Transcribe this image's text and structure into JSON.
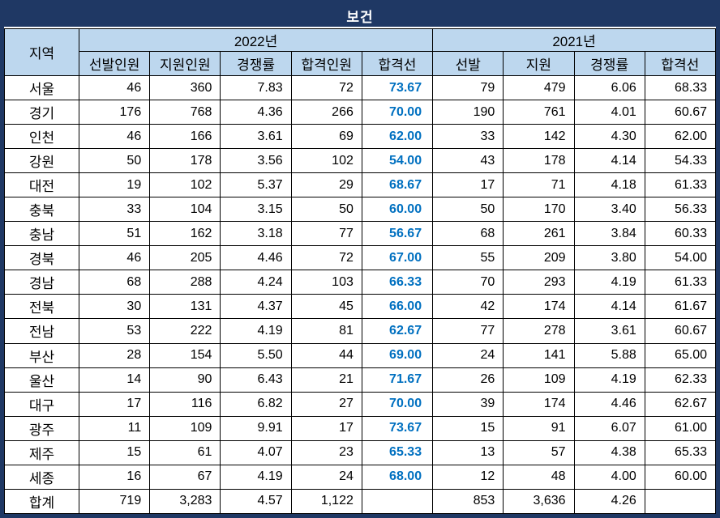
{
  "title": "보건",
  "colors": {
    "navy": "#1F3864",
    "header_fill": "#BDD7EE",
    "passline_text": "#0070C0",
    "grid_line": "#000000"
  },
  "table": {
    "region_header": "지역",
    "groups": [
      {
        "label": "2022년",
        "columns": [
          "선발인원",
          "지원인원",
          "경쟁률",
          "합격인원",
          "합격선"
        ]
      },
      {
        "label": "2021년",
        "columns": [
          "선발",
          "지원",
          "경쟁률",
          "합격선"
        ]
      }
    ],
    "rows": [
      [
        "서울",
        "46",
        "360",
        "7.83",
        "72",
        "73.67",
        "79",
        "479",
        "6.06",
        "68.33"
      ],
      [
        "경기",
        "176",
        "768",
        "4.36",
        "266",
        "70.00",
        "190",
        "761",
        "4.01",
        "60.67"
      ],
      [
        "인천",
        "46",
        "166",
        "3.61",
        "69",
        "62.00",
        "33",
        "142",
        "4.30",
        "62.00"
      ],
      [
        "강원",
        "50",
        "178",
        "3.56",
        "102",
        "54.00",
        "43",
        "178",
        "4.14",
        "54.33"
      ],
      [
        "대전",
        "19",
        "102",
        "5.37",
        "29",
        "68.67",
        "17",
        "71",
        "4.18",
        "61.33"
      ],
      [
        "충북",
        "33",
        "104",
        "3.15",
        "50",
        "60.00",
        "50",
        "170",
        "3.40",
        "56.33"
      ],
      [
        "충남",
        "51",
        "162",
        "3.18",
        "77",
        "56.67",
        "68",
        "261",
        "3.84",
        "60.33"
      ],
      [
        "경북",
        "46",
        "205",
        "4.46",
        "72",
        "67.00",
        "55",
        "209",
        "3.80",
        "54.00"
      ],
      [
        "경남",
        "68",
        "288",
        "4.24",
        "103",
        "66.33",
        "70",
        "293",
        "4.19",
        "61.33"
      ],
      [
        "전북",
        "30",
        "131",
        "4.37",
        "45",
        "66.00",
        "42",
        "174",
        "4.14",
        "61.67"
      ],
      [
        "전남",
        "53",
        "222",
        "4.19",
        "81",
        "62.67",
        "77",
        "278",
        "3.61",
        "60.67"
      ],
      [
        "부산",
        "28",
        "154",
        "5.50",
        "44",
        "69.00",
        "24",
        "141",
        "5.88",
        "65.00"
      ],
      [
        "울산",
        "14",
        "90",
        "6.43",
        "21",
        "71.67",
        "26",
        "109",
        "4.19",
        "62.33"
      ],
      [
        "대구",
        "17",
        "116",
        "6.82",
        "27",
        "70.00",
        "39",
        "174",
        "4.46",
        "62.67"
      ],
      [
        "광주",
        "11",
        "109",
        "9.91",
        "17",
        "73.67",
        "15",
        "91",
        "6.07",
        "61.00"
      ],
      [
        "제주",
        "15",
        "61",
        "4.07",
        "23",
        "65.33",
        "13",
        "57",
        "4.38",
        "65.33"
      ],
      [
        "세종",
        "16",
        "67",
        "4.19",
        "24",
        "68.00",
        "12",
        "48",
        "4.00",
        "60.00"
      ],
      [
        "합계",
        "719",
        "3,283",
        "4.57",
        "1,122",
        "",
        "853",
        "3,636",
        "4.26",
        ""
      ]
    ]
  }
}
